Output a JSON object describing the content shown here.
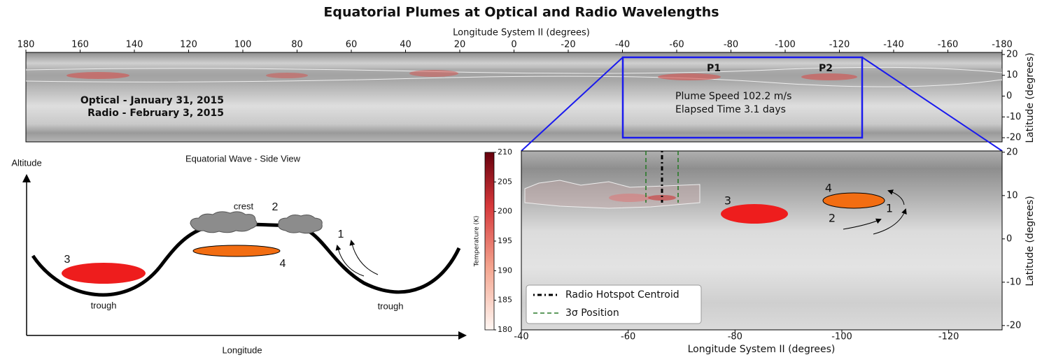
{
  "title": "Equatorial Plumes at Optical and Radio Wavelengths",
  "top_map": {
    "x_label": "Longitude System II (degrees)",
    "y_label": "Latitude (degrees)",
    "xlim": [
      180,
      -180
    ],
    "xticks": [
      180,
      160,
      140,
      120,
      100,
      80,
      60,
      40,
      20,
      0,
      -20,
      -40,
      -60,
      -80,
      -100,
      -120,
      -140,
      -160,
      -180
    ],
    "ylim": [
      -22,
      21
    ],
    "yticks": [
      20,
      10,
      0,
      -10,
      -20
    ],
    "labels": {
      "optical": "Optical - January 31, 2015",
      "radio": "Radio - February 3, 2015",
      "speed": "Plume Speed 102.2 m/s",
      "elapsed": "Elapsed Time 3.1 days",
      "p1": "P1",
      "p2": "P2"
    }
  },
  "wave_diagram": {
    "title": "Equatorial Wave - Side View",
    "y_label": "Altitude",
    "x_label": "Longitude",
    "crest": "crest",
    "trough_left": "trough",
    "trough_right": "trough",
    "markers": [
      "1",
      "2",
      "3",
      "4"
    ]
  },
  "colorbar": {
    "label": "Temperature (K)",
    "clim": [
      180,
      210
    ],
    "ticks": [
      180,
      185,
      190,
      195,
      200,
      205,
      210
    ]
  },
  "zoom_map": {
    "x_label": "Longitude System II (degrees)",
    "y_label": "Latitude (degrees)",
    "xlim": [
      -40,
      -130
    ],
    "xticks": [
      -40,
      -60,
      -80,
      -100,
      -120
    ],
    "ylim": [
      -21,
      20.3
    ],
    "yticks": [
      20,
      10,
      0,
      -10,
      -20
    ],
    "markers": [
      "3",
      "4",
      "1",
      "2"
    ],
    "legend": [
      "Radio Hotspot Centroid",
      "3σ Position"
    ]
  }
}
